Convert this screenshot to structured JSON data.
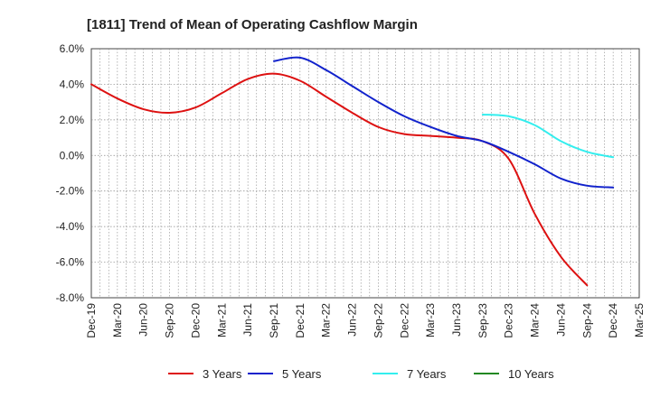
{
  "chart_data": {
    "type": "line",
    "title": "[1811]  Trend of Mean of Operating Cashflow Margin",
    "xlabel": "",
    "ylabel": "",
    "ylim": [
      -8.0,
      6.0
    ],
    "y_ticks": [
      6.0,
      4.0,
      2.0,
      0.0,
      -2.0,
      -4.0,
      -6.0,
      -8.0
    ],
    "y_tick_labels": [
      "6.0%",
      "4.0%",
      "2.0%",
      "0.0%",
      "-2.0%",
      "-4.0%",
      "-6.0%",
      "-8.0%"
    ],
    "x_tick_labels": [
      "Dec-19",
      "Mar-20",
      "Jun-20",
      "Sep-20",
      "Dec-20",
      "Mar-21",
      "Jun-21",
      "Sep-21",
      "Dec-21",
      "Mar-22",
      "Jun-22",
      "Sep-22",
      "Dec-22",
      "Mar-23",
      "Jun-23",
      "Sep-23",
      "Dec-23",
      "Mar-24",
      "Jun-24",
      "Sep-24",
      "Dec-24",
      "Mar-25"
    ],
    "grid": true,
    "legend_position": "bottom",
    "series": [
      {
        "name": "3 Years",
        "color": "#dd1111",
        "start_index": 0,
        "values": [
          4.0,
          3.2,
          2.6,
          2.4,
          2.7,
          3.5,
          4.3,
          4.6,
          4.2,
          3.3,
          2.4,
          1.6,
          1.2,
          1.1,
          1.0,
          0.8,
          -0.2,
          -3.3,
          -5.7,
          -7.3
        ]
      },
      {
        "name": "5 Years",
        "color": "#1122cc",
        "start_index": 7,
        "values": [
          5.3,
          5.5,
          4.8,
          3.9,
          3.0,
          2.2,
          1.6,
          1.1,
          0.8,
          0.2,
          -0.5,
          -1.3,
          -1.7,
          -1.8
        ]
      },
      {
        "name": "7 Years",
        "color": "#33eeee",
        "start_index": 15,
        "values": [
          2.3,
          2.2,
          1.7,
          0.8,
          0.2,
          -0.1
        ]
      },
      {
        "name": "10 Years",
        "color": "#228822",
        "start_index": 0,
        "values": []
      }
    ]
  }
}
